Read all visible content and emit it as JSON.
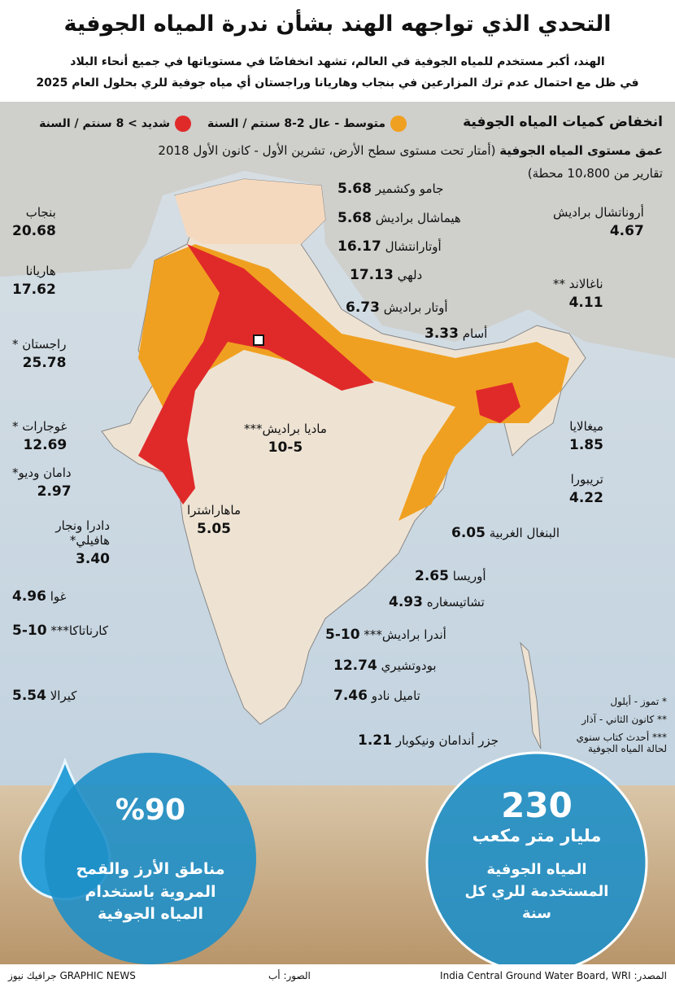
{
  "header": {
    "title": "التحدي الذي تواجهه الهند بشأن ندرة المياه الجوفية",
    "subtitle": [
      "الهند، أكبر مستخدم للمياه الجوفية في العالم، تشهد انخفاضًا في مستوياتها في جميع أنحاء البلاد",
      "في ظل مع احتمال عدم ترك المزارعين في بنجاب وهاريانا وراجستان أي مياه جوفية للري بحلول العام 2025"
    ]
  },
  "legend": {
    "title": "انخفاض كميات المياه الجوفية",
    "items": [
      {
        "label": "متوسط - عال 2-8 سنتم / السنة",
        "color": "#f0a020"
      },
      {
        "label": "شديد > 8 سنتم / السنة",
        "color": "#e02a2a"
      }
    ]
  },
  "depth": {
    "title": "عمق مستوى المياه الجوفية",
    "detail": "(أمتار تحت مستوى سطح الأرض، تشرين الأول - كانون الأول 2018",
    "stations": "تقارير من 10،800 محطة)"
  },
  "states": [
    {
      "name": "جامو وكشمير",
      "value": "5.68"
    },
    {
      "name": "هيماشال براديش",
      "value": "5.68"
    },
    {
      "name": "أوتارانتشال",
      "value": "16.17"
    },
    {
      "name": "دلهي",
      "value": "17.13"
    },
    {
      "name": "أوتار براديش",
      "value": "6.73"
    },
    {
      "name": "أسام",
      "value": "3.33"
    },
    {
      "name": "بنجاب",
      "value": "20.68"
    },
    {
      "name": "هاريانا",
      "value": "17.62"
    },
    {
      "name": "راجستان *",
      "value": "25.78"
    },
    {
      "name": "أروناتشال براديش",
      "value": "4.67"
    },
    {
      "name": "ناغالاند **",
      "value": "4.11"
    },
    {
      "name": "ماديا براديش***",
      "value": "10-5"
    },
    {
      "name": "غوجارات *",
      "value": "12.69"
    },
    {
      "name": "دامان وديو*",
      "value": "2.97"
    },
    {
      "name": "دادرا ونجار هافيلي*",
      "value": "3.40"
    },
    {
      "name": "ميغالايا",
      "value": "1.85"
    },
    {
      "name": "تريبورا",
      "value": "4.22"
    },
    {
      "name": "ماهاراشترا",
      "value": "5.05"
    },
    {
      "name": "البنغال الغربية",
      "value": "6.05"
    },
    {
      "name": "أوريسا",
      "value": "2.65"
    },
    {
      "name": "تشاتيسغاره",
      "value": "4.93"
    },
    {
      "name": "غوا",
      "value": "4.96"
    },
    {
      "name": "كارناتاكا***",
      "value": "10-5"
    },
    {
      "name": "أندرا براديش***",
      "value": "10-5"
    },
    {
      "name": "بودوتشيري",
      "value": "12.74"
    },
    {
      "name": "كيرالا",
      "value": "5.54"
    },
    {
      "name": "تاميل نادو",
      "value": "7.46"
    },
    {
      "name": "جزر أندامان ونيكوبار",
      "value": "1.21"
    }
  ],
  "notes": [
    "* تموز - أيلول",
    "** كانون الثاني - آذار",
    "*** أحدث كتاب سنوي لحالة المياه الجوفية"
  ],
  "stats": [
    {
      "value": "%90",
      "text": "مناطق الأرز والقمح المروية باستخدام المياه الجوفية"
    },
    {
      "value": "230",
      "unit": "مليار متر مكعب",
      "text": "المياه الجوفية المستخدمة للري كل سنة"
    }
  ],
  "footer": {
    "source": "المصدر: India Central Ground Water Board, WRI",
    "photos": "الصور: أب",
    "credit": "GRAPHIC NEWS جرافيك نيوز"
  }
}
